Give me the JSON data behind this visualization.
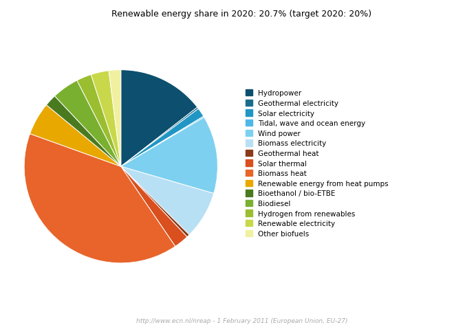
{
  "title": "Renewable energy share in 2020: 20.7% (target 2020: 20%)",
  "subtitle": "http://www.ecn.nl/nreap - 1 February 2011 (European Union, EU-27)",
  "labels": [
    "Hydropower",
    "Geothermal electricity",
    "Solar electricity",
    "Tidal, wave and ocean energy",
    "Wind power",
    "Biomass electricity",
    "Geothermal heat",
    "Solar thermal",
    "Biomass heat",
    "Renewable energy from heat pumps",
    "Bioethanol / bio-ETBE",
    "Biodiesel",
    "Hydrogen from renewables",
    "Renewable electricity",
    "Other biofuels"
  ],
  "values": [
    14.5,
    0.3,
    1.5,
    0.2,
    13.0,
    8.0,
    0.5,
    2.5,
    40.0,
    5.5,
    2.0,
    4.5,
    2.5,
    3.0,
    2.0
  ],
  "colors": [
    "#0d4f6e",
    "#1a6d8a",
    "#2196c4",
    "#4db8e8",
    "#7dd0f0",
    "#b8e0f5",
    "#8b3a1a",
    "#d94f1e",
    "#e8642a",
    "#e8a800",
    "#4a7a20",
    "#7ab030",
    "#9abe30",
    "#c8d84a",
    "#f0f0a0"
  ],
  "start_angle": 90,
  "figsize": [
    6.76,
    4.77
  ],
  "dpi": 100
}
